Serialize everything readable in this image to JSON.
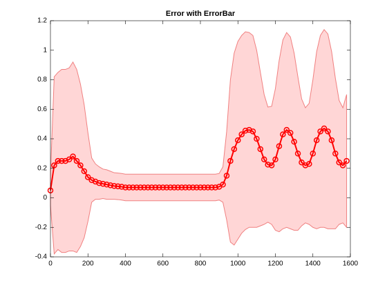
{
  "chart_data": {
    "type": "errorband",
    "title": "Error with ErrorBar",
    "x": [
      0,
      20,
      40,
      60,
      80,
      100,
      120,
      140,
      160,
      180,
      200,
      220,
      240,
      260,
      280,
      300,
      320,
      340,
      360,
      380,
      400,
      420,
      440,
      460,
      480,
      500,
      520,
      540,
      560,
      580,
      600,
      620,
      640,
      660,
      680,
      700,
      720,
      740,
      760,
      780,
      800,
      820,
      840,
      860,
      880,
      900,
      920,
      940,
      960,
      980,
      1000,
      1020,
      1040,
      1060,
      1080,
      1100,
      1120,
      1140,
      1160,
      1180,
      1200,
      1220,
      1240,
      1260,
      1280,
      1300,
      1320,
      1340,
      1360,
      1380,
      1400,
      1420,
      1440,
      1460,
      1480,
      1500,
      1520,
      1540,
      1560,
      1580
    ],
    "values": [
      0.05,
      0.22,
      0.25,
      0.25,
      0.25,
      0.26,
      0.28,
      0.25,
      0.22,
      0.18,
      0.14,
      0.12,
      0.11,
      0.1,
      0.095,
      0.09,
      0.085,
      0.08,
      0.078,
      0.075,
      0.07,
      0.07,
      0.07,
      0.07,
      0.07,
      0.07,
      0.07,
      0.07,
      0.07,
      0.07,
      0.07,
      0.07,
      0.07,
      0.07,
      0.07,
      0.07,
      0.07,
      0.07,
      0.07,
      0.07,
      0.07,
      0.07,
      0.07,
      0.07,
      0.07,
      0.075,
      0.09,
      0.15,
      0.25,
      0.33,
      0.39,
      0.43,
      0.455,
      0.46,
      0.45,
      0.4,
      0.33,
      0.26,
      0.225,
      0.22,
      0.26,
      0.35,
      0.43,
      0.46,
      0.44,
      0.38,
      0.3,
      0.24,
      0.22,
      0.23,
      0.3,
      0.39,
      0.45,
      0.47,
      0.45,
      0.39,
      0.3,
      0.24,
      0.22,
      0.25
    ],
    "errors": [
      0.1,
      0.6,
      0.6,
      0.62,
      0.62,
      0.62,
      0.64,
      0.62,
      0.55,
      0.45,
      0.3,
      0.15,
      0.12,
      0.11,
      0.1,
      0.1,
      0.095,
      0.09,
      0.09,
      0.09,
      0.09,
      0.09,
      0.09,
      0.09,
      0.09,
      0.09,
      0.09,
      0.09,
      0.09,
      0.09,
      0.09,
      0.09,
      0.09,
      0.09,
      0.09,
      0.09,
      0.09,
      0.09,
      0.09,
      0.09,
      0.09,
      0.09,
      0.09,
      0.09,
      0.09,
      0.09,
      0.12,
      0.3,
      0.55,
      0.65,
      0.67,
      0.67,
      0.67,
      0.66,
      0.65,
      0.6,
      0.52,
      0.44,
      0.39,
      0.4,
      0.48,
      0.58,
      0.64,
      0.66,
      0.65,
      0.6,
      0.52,
      0.43,
      0.39,
      0.41,
      0.5,
      0.6,
      0.65,
      0.67,
      0.66,
      0.6,
      0.51,
      0.42,
      0.39,
      0.45
    ],
    "color": "#ff0000",
    "band_color": "#ffd6d6",
    "band_edge_color": "#f08080",
    "xlim": [
      0,
      1600
    ],
    "xticks": [
      0,
      200,
      400,
      600,
      800,
      1000,
      1200,
      1400,
      1600
    ],
    "ylim": [
      -0.4,
      1.2
    ],
    "yticks": [
      -0.4,
      -0.2,
      0,
      0.2,
      0.4,
      0.6,
      0.8,
      1,
      1.2
    ]
  }
}
